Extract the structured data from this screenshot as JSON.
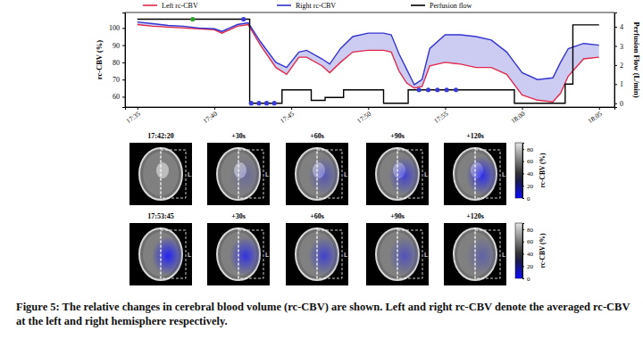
{
  "chart_data": {
    "type": "line",
    "xlim": [
      34.2,
      66
    ],
    "xticks": [
      {
        "value": 35,
        "label": "17:35"
      },
      {
        "value": 40,
        "label": "17:40"
      },
      {
        "value": 45,
        "label": "17:45"
      },
      {
        "value": 50,
        "label": "17:50"
      },
      {
        "value": 55,
        "label": "17:55"
      },
      {
        "value": 60,
        "label": "18:00"
      },
      {
        "value": 65,
        "label": "18:05"
      }
    ],
    "ylim": [
      54,
      109
    ],
    "yticks": [
      60,
      70,
      80,
      90,
      100
    ],
    "ylabel": "rc-CBV (%)",
    "y2lim": [
      -0.2,
      4.75
    ],
    "y2ticks": [
      0,
      1,
      2,
      3,
      4
    ],
    "y2label": "Perfusion Flow (L/min)",
    "grid": false,
    "legend": "top",
    "series": [
      {
        "name": "Left rc-CBV",
        "color": "#e0284a",
        "type": "line",
        "x": [
          35,
          36,
          37,
          38,
          39,
          40,
          40.5,
          41,
          41.5,
          42.2,
          43,
          44,
          44.7,
          45.5,
          46,
          47,
          47.5,
          48.2,
          49,
          50,
          51,
          51.5,
          52,
          52.5,
          53,
          53.5,
          54,
          55,
          56,
          57,
          58,
          59,
          59.5,
          60,
          61,
          62,
          62.5,
          63,
          64,
          65
        ],
        "values": [
          102,
          101,
          100.5,
          100,
          99.5,
          99,
          97,
          99,
          101,
          102,
          90,
          77,
          73,
          83,
          83,
          78,
          74,
          80,
          86,
          87,
          87,
          86,
          75,
          68,
          65,
          66,
          78,
          80,
          79,
          77,
          77,
          73,
          67,
          61,
          58,
          57,
          62,
          72,
          82,
          83
        ]
      },
      {
        "name": "Right rc-CBV",
        "color": "#3434d0",
        "type": "line",
        "x": [
          35,
          36,
          37,
          38,
          39,
          40,
          40.5,
          41,
          41.5,
          42.2,
          43,
          44,
          44.7,
          45.5,
          46,
          47,
          47.5,
          48.2,
          49,
          50,
          51,
          51.5,
          52,
          52.5,
          53,
          53.5,
          54,
          55,
          56,
          57,
          58,
          59,
          59.5,
          60,
          61,
          62,
          62.5,
          63,
          64,
          65
        ],
        "values": [
          103.5,
          102.5,
          101.5,
          101,
          100,
          99.5,
          98,
          100,
          102,
          103,
          92,
          80,
          77,
          86,
          87,
          82,
          79,
          88,
          95,
          97,
          97,
          96,
          85,
          76,
          67,
          70,
          88,
          96,
          96,
          95,
          93,
          86,
          80,
          74,
          70,
          71,
          80,
          88,
          91,
          90
        ]
      },
      {
        "name": "Perfusion flow",
        "color": "#000000",
        "type": "step",
        "axis": "y2",
        "x": [
          35,
          42.3,
          44.4,
          46.3,
          47.2,
          48.4,
          51.0,
          52.6,
          59.5,
          62.8,
          63.3,
          65
        ],
        "values": [
          4.4,
          0,
          0.7,
          0.15,
          0.3,
          0.7,
          0,
          0.7,
          0,
          1.0,
          4.1,
          4.1
        ]
      },
      {
        "color": "#2ca02c",
        "type": "scatter",
        "marker": "circle",
        "axis": "y2",
        "x": [
          38.6
        ],
        "values": [
          4.4
        ]
      },
      {
        "color": "#3a3ad8",
        "type": "scatter",
        "marker": "circle",
        "axis": "y2",
        "x": [
          41.9,
          42.4,
          42.9,
          43.4,
          43.9,
          53.3,
          53.9,
          54.5,
          55.1,
          55.7
        ],
        "values": [
          4.4,
          0,
          0,
          0,
          0,
          0.7,
          0.7,
          0.7,
          0.7,
          0.7
        ]
      }
    ]
  },
  "images": {
    "rows": [
      {
        "titles": [
          "17:42:20",
          "+30s",
          "+60s",
          "+90s",
          "+120s"
        ]
      },
      {
        "titles": [
          "17:53:45",
          "+30s",
          "+60s",
          "+90s",
          "+120s"
        ]
      }
    ],
    "side_label": "L",
    "colorbar": {
      "label": "rc-CBV (%)",
      "lim": [
        0,
        90
      ],
      "ticks": [
        0,
        20,
        40,
        60,
        80
      ]
    }
  },
  "caption": "Figure 5: The relative changes in cerebral blood volume (rc-CBV) are shown. Left and right rc-CBV denote the averaged rc-CBV at the left and right hemisphere respectively."
}
